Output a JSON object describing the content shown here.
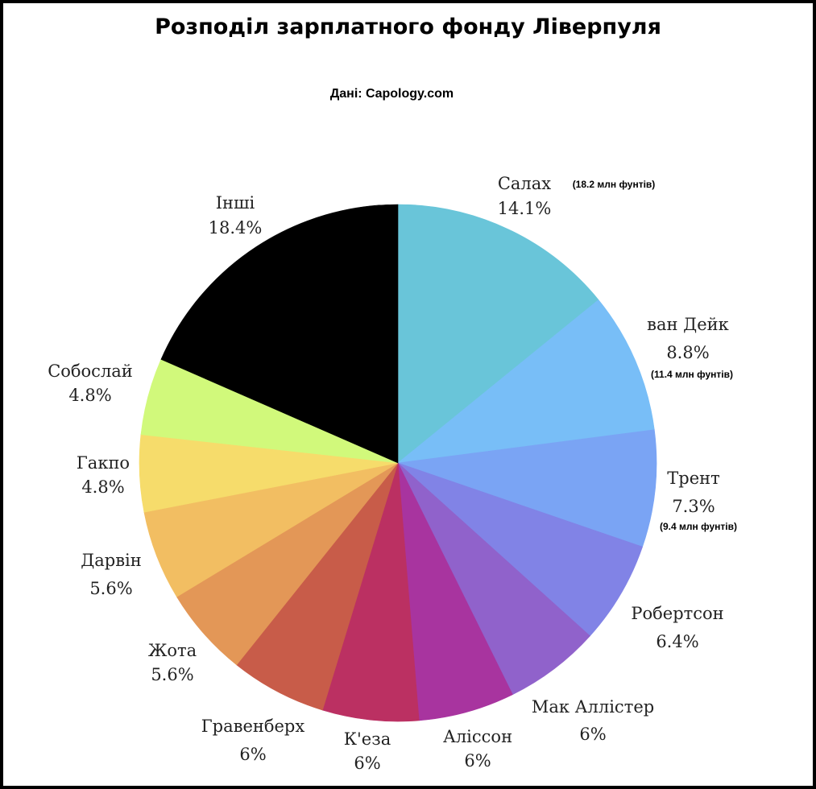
{
  "chart_data": {
    "type": "pie",
    "title": "Розподіл зарплатного фонду Ліверпуля",
    "subtitle": "Дані: Capology.com",
    "start": "top, clockwise",
    "slices": [
      {
        "label": "Салах",
        "pct_label": "14.1%",
        "value": 14.1,
        "note": "(18.2 млн фунтів)",
        "color": "#69c5d9"
      },
      {
        "label": "ван Дейк",
        "pct_label": "8.8%",
        "value": 8.8,
        "note": "(11.4 млн фунтів)",
        "color": "#78bef7"
      },
      {
        "label": "Трент",
        "pct_label": "7.3%",
        "value": 7.3,
        "note": "(9.4 млн фунтів)",
        "color": "#7aa4f4"
      },
      {
        "label": "Робертсон",
        "pct_label": "6.4%",
        "value": 6.4,
        "note": "",
        "color": "#8183e6"
      },
      {
        "label": "Мак Аллістер",
        "pct_label": "6%",
        "value": 6.0,
        "note": "",
        "color": "#9062cb"
      },
      {
        "label": "Аліссон",
        "pct_label": "6%",
        "value": 6.0,
        "note": "",
        "color": "#a8349f"
      },
      {
        "label": "К'еза",
        "pct_label": "6%",
        "value": 6.0,
        "note": "",
        "color": "#bb3062"
      },
      {
        "label": "Гравенберх",
        "pct_label": "6%",
        "value": 6.0,
        "note": "",
        "color": "#c85c49"
      },
      {
        "label": "Жота",
        "pct_label": "5.6%",
        "value": 5.6,
        "note": "",
        "color": "#e39757"
      },
      {
        "label": "Дарвін",
        "pct_label": "5.6%",
        "value": 5.6,
        "note": "",
        "color": "#f2be62"
      },
      {
        "label": "Гакпо",
        "pct_label": "4.8%",
        "value": 4.8,
        "note": "",
        "color": "#f6dc6b"
      },
      {
        "label": "Собослай",
        "pct_label": "4.8%",
        "value": 4.8,
        "note": "",
        "color": "#d1f97b"
      },
      {
        "label": "Інші",
        "pct_label": "18.4%",
        "value": 18.4,
        "note": "",
        "color": "#000000"
      }
    ]
  }
}
